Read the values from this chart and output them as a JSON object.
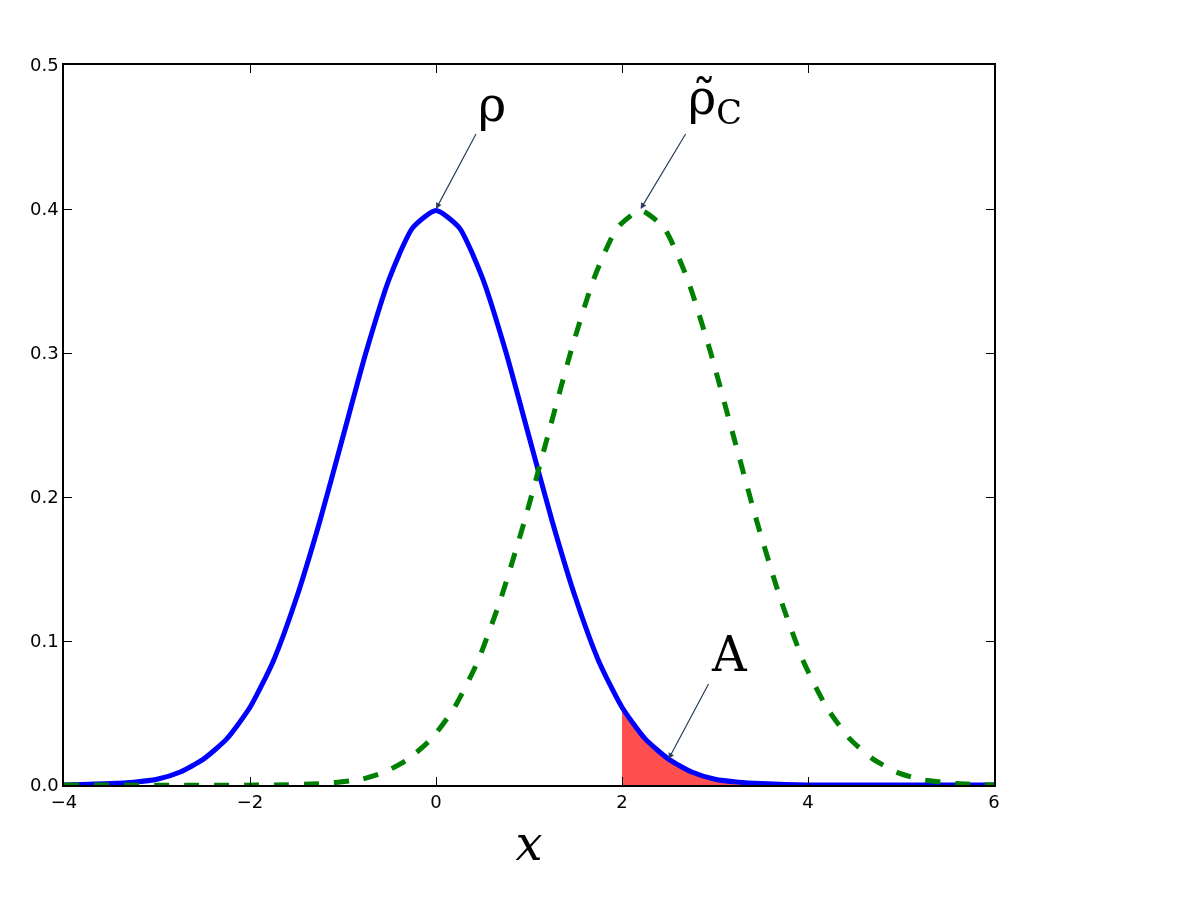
{
  "chart_data": {
    "type": "line",
    "xlabel": "x",
    "xlim": [
      -4,
      6
    ],
    "xticks": [
      {
        "value": -4,
        "label": "−4"
      },
      {
        "value": -2,
        "label": "−2"
      },
      0,
      2,
      4,
      6
    ],
    "ylim": [
      0,
      0.5
    ],
    "yticks": [
      {
        "value": 0,
        "label": "0.0"
      },
      0.1,
      0.2,
      0.3,
      0.4,
      0.5
    ],
    "series": [
      {
        "color": "#0000ff",
        "line_style": "solid",
        "x": [
          -4,
          -3.5,
          -3.25,
          -3,
          -2.75,
          -2.5,
          -2.25,
          -2,
          -1.75,
          -1.5,
          -1.25,
          -1,
          -0.75,
          -0.5,
          -0.25,
          0,
          0.25,
          0.5,
          0.75,
          1,
          1.25,
          1.5,
          1.75,
          2,
          2.25,
          2.5,
          2.75,
          3,
          3.25,
          3.5,
          4,
          6
        ],
        "values": [
          0,
          0.001,
          0.002,
          0.004,
          0.009,
          0.018,
          0.032,
          0.054,
          0.086,
          0.13,
          0.183,
          0.242,
          0.301,
          0.352,
          0.387,
          0.399,
          0.387,
          0.352,
          0.301,
          0.242,
          0.183,
          0.13,
          0.086,
          0.054,
          0.032,
          0.018,
          0.009,
          0.004,
          0.002,
          0.001,
          0,
          0
        ]
      },
      {
        "type": "line",
        "color": "#008000",
        "line_style": "dashed",
        "x": [
          -4,
          -1.8,
          -1.2,
          -0.8,
          -0.55,
          -0.3,
          -0.05,
          0.2,
          0.45,
          0.7,
          0.95,
          1.2,
          1.45,
          1.7,
          1.95,
          2.2,
          2.45,
          2.7,
          2.95,
          3.2,
          3.45,
          3.7,
          3.95,
          4.2,
          4.45,
          4.7,
          4.95,
          5.2,
          5.6,
          6
        ],
        "values": [
          0,
          0,
          0.001,
          0.004,
          0.009,
          0.018,
          0.032,
          0.054,
          0.086,
          0.13,
          0.183,
          0.242,
          0.301,
          0.352,
          0.387,
          0.399,
          0.387,
          0.352,
          0.301,
          0.242,
          0.183,
          0.13,
          0.086,
          0.054,
          0.032,
          0.018,
          0.009,
          0.004,
          0.001,
          0
        ]
      },
      {
        "type": "area",
        "color": "#ff5050",
        "x": [
          2,
          2.25,
          2.5,
          2.75,
          3,
          3.25,
          3.5,
          4
        ],
        "values": [
          0.054,
          0.032,
          0.018,
          0.009,
          0.004,
          0.002,
          0.001,
          0
        ]
      }
    ],
    "annotations": [
      {
        "text": "ρ",
        "x": 0,
        "y": 0.4
      },
      {
        "text": "ρ̃$_{C}$",
        "x": 2.2,
        "y": 0.4
      },
      {
        "text": "A",
        "x": 2.5,
        "y": 0.018
      }
    ]
  }
}
